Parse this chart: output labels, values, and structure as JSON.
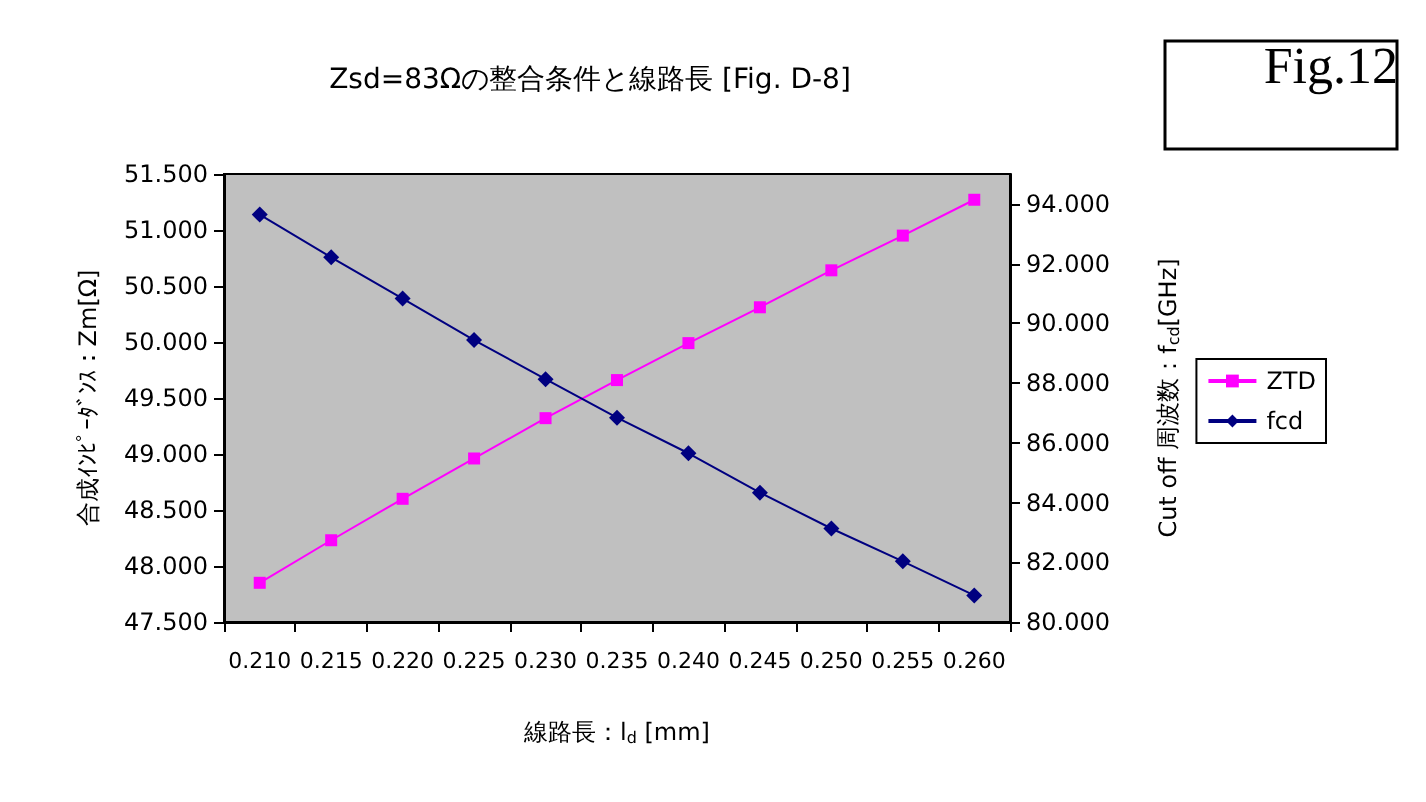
{
  "chart_data": {
    "type": "line",
    "title": "Zsd=83Ωの整合条件と線路長 [Fig. D-8]",
    "xlabel": "線路長：l$_{d}$ [mm]",
    "ylabel": "合成ｲﾝﾋﾟｰﾀﾞﾝｽ：Zm[Ω]",
    "y2label": "Cut off 周波数：f$_{cd}$[GHz]",
    "annotations": [
      "Fig.12"
    ],
    "categories": [
      "0.210",
      "0.215",
      "0.220",
      "0.225",
      "0.230",
      "0.235",
      "0.240",
      "0.245",
      "0.250",
      "0.255",
      "0.260"
    ],
    "series": [
      {
        "name": "ZTD",
        "color": "#ff00ff",
        "marker": "square",
        "values": [
          47.85,
          48.23,
          48.6,
          48.96,
          49.32,
          49.66,
          49.99,
          50.31,
          50.64,
          50.95,
          51.27
        ]
      },
      {
        "name": "fcd",
        "color": "#000080",
        "marker": "diamond",
        "axis": "y2",
        "values": [
          93.64,
          92.21,
          90.83,
          89.44,
          88.13,
          86.84,
          85.65,
          84.33,
          83.13,
          82.03,
          80.89
        ]
      }
    ],
    "ylim": [
      47.5,
      51.5
    ],
    "yticks": [
      {
        "value": 47.5,
        "label": "47.500"
      },
      {
        "value": 48,
        "label": "48.000"
      },
      {
        "value": 48.5,
        "label": "48.500"
      },
      {
        "value": 49,
        "label": "49.000"
      },
      {
        "value": 49.5,
        "label": "49.500"
      },
      {
        "value": 50,
        "label": "50.000"
      },
      {
        "value": 50.5,
        "label": "50.500"
      },
      {
        "value": 51,
        "label": "51.000"
      },
      {
        "value": 51.5,
        "label": "51.500"
      }
    ],
    "y2lim": [
      80,
      95
    ],
    "y2ticks": [
      {
        "value": 80,
        "label": "80.000"
      },
      {
        "value": 82,
        "label": "82.000"
      },
      {
        "value": 84,
        "label": "84.000"
      },
      {
        "value": 86,
        "label": "86.000"
      },
      {
        "value": 88,
        "label": "88.000"
      },
      {
        "value": 90,
        "label": "90.000"
      },
      {
        "value": 92,
        "label": "92.000"
      },
      {
        "value": 94,
        "label": "94.000"
      }
    ],
    "grid": false,
    "legend": "right",
    "line_style": "solid"
  }
}
